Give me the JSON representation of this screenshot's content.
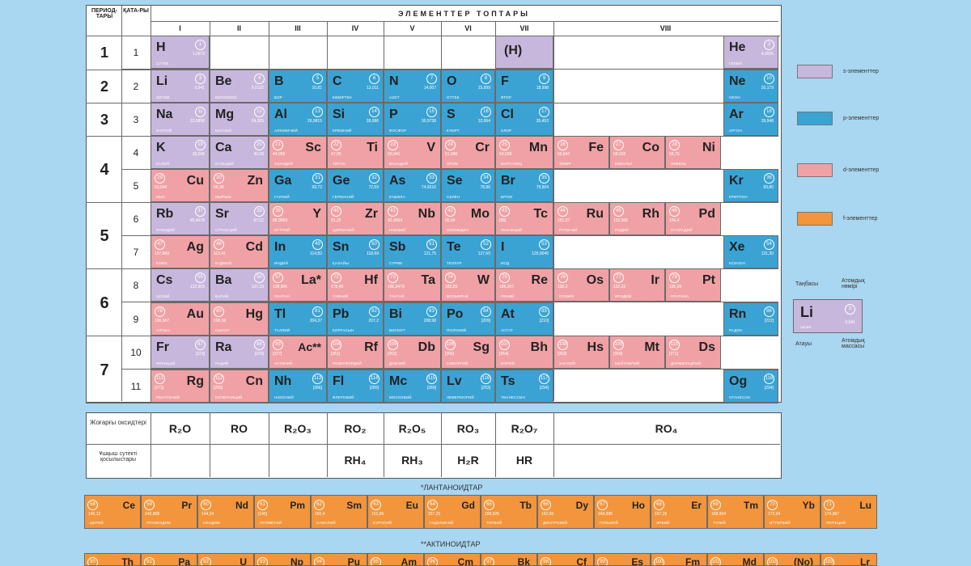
{
  "header": {
    "period_label": "ПЕРИОД-ТАРЫ",
    "row_label": "ҚАТА-РЫ",
    "groups_title": "ЭЛЕМЕНТТЕР ТОПТАРЫ",
    "groups": [
      "I",
      "II",
      "III",
      "IV",
      "V",
      "VI",
      "VII",
      "VIII"
    ]
  },
  "periods": [
    "1",
    "2",
    "3",
    "4",
    "5",
    "6",
    "7"
  ],
  "rows": [
    "1",
    "2",
    "3",
    "4",
    "5",
    "6",
    "7",
    "8",
    "9",
    "10",
    "11"
  ],
  "colors": {
    "s": "#c8b7dc",
    "p": "#3aa3d4",
    "d": "#f0a1a5",
    "f": "#f2953c"
  },
  "elements": [
    {
      "sym": "H",
      "n": "1",
      "type": "s",
      "row": 1,
      "col": 1,
      "mass": "1,0079",
      "name": "СУТЕК"
    },
    {
      "sym": "(H)",
      "n": "",
      "type": "s",
      "row": 1,
      "col": 7,
      "mass": "",
      "name": ""
    },
    {
      "sym": "He",
      "n": "2",
      "type": "s",
      "row": 1,
      "col": 8,
      "mass": "4,0026",
      "name": "ГЕЛИЙ"
    },
    {
      "sym": "Li",
      "n": "3",
      "type": "s",
      "row": 2,
      "col": 1,
      "mass": "6,941",
      "name": "ЛИТИЙ"
    },
    {
      "sym": "Be",
      "n": "4",
      "type": "s",
      "row": 2,
      "col": 2,
      "mass": "9,0122",
      "name": "БЕРИЛЛИЙ"
    },
    {
      "sym": "B",
      "n": "5",
      "type": "p",
      "row": 2,
      "col": 3,
      "mass": "10,81",
      "name": "БОР"
    },
    {
      "sym": "C",
      "n": "6",
      "type": "p",
      "row": 2,
      "col": 4,
      "mass": "12,011",
      "name": "КӨМІРТЕК"
    },
    {
      "sym": "N",
      "n": "7",
      "type": "p",
      "row": 2,
      "col": 5,
      "mass": "14,007",
      "name": "АЗОТ"
    },
    {
      "sym": "O",
      "n": "8",
      "type": "p",
      "row": 2,
      "col": 6,
      "mass": "15,999",
      "name": "ОТТЕК"
    },
    {
      "sym": "F",
      "n": "9",
      "type": "p",
      "row": 2,
      "col": 7,
      "mass": "18,998",
      "name": "ФТОР"
    },
    {
      "sym": "Ne",
      "n": "10",
      "type": "p",
      "row": 2,
      "col": 8,
      "mass": "20,179",
      "name": "НЕОН"
    },
    {
      "sym": "Na",
      "n": "11",
      "type": "s",
      "row": 3,
      "col": 1,
      "mass": "22,9898",
      "name": "НАТРИЙ"
    },
    {
      "sym": "Mg",
      "n": "12",
      "type": "s",
      "row": 3,
      "col": 2,
      "mass": "24,305",
      "name": "МАГНИЙ"
    },
    {
      "sym": "Al",
      "n": "13",
      "type": "p",
      "row": 3,
      "col": 3,
      "mass": "26,9815",
      "name": "АЛЮМИНИЙ"
    },
    {
      "sym": "Si",
      "n": "14",
      "type": "p",
      "row": 3,
      "col": 4,
      "mass": "28,086",
      "name": "КРЕМНИЙ"
    },
    {
      "sym": "P",
      "n": "15",
      "type": "p",
      "row": 3,
      "col": 5,
      "mass": "30,9738",
      "name": "ФОСФОР"
    },
    {
      "sym": "S",
      "n": "16",
      "type": "p",
      "row": 3,
      "col": 6,
      "mass": "32,064",
      "name": "КҮКІРТ"
    },
    {
      "sym": "Cl",
      "n": "17",
      "type": "p",
      "row": 3,
      "col": 7,
      "mass": "35,453",
      "name": "ХЛОР"
    },
    {
      "sym": "Ar",
      "n": "18",
      "type": "p",
      "row": 3,
      "col": 8,
      "mass": "39,948",
      "name": "АРГОН"
    },
    {
      "sym": "K",
      "n": "19",
      "type": "s",
      "row": 4,
      "col": 1,
      "mass": "39,098",
      "name": "КАЛИЙ"
    },
    {
      "sym": "Ca",
      "n": "20",
      "type": "s",
      "row": 4,
      "col": 2,
      "mass": "40,08",
      "name": "КАЛЬЦИЙ"
    },
    {
      "sym": "Sc",
      "n": "21",
      "type": "d",
      "row": 4,
      "col": 3,
      "mass": "44,956",
      "name": "СКАНДИЙ",
      "right": true
    },
    {
      "sym": "Ti",
      "n": "22",
      "type": "d",
      "row": 4,
      "col": 4,
      "mass": "47,90",
      "name": "ТИТАН",
      "right": true
    },
    {
      "sym": "V",
      "n": "23",
      "type": "d",
      "row": 4,
      "col": 5,
      "mass": "50,941",
      "name": "ВАНАДИЙ",
      "right": true
    },
    {
      "sym": "Cr",
      "n": "24",
      "type": "d",
      "row": 4,
      "col": 6,
      "mass": "51,996",
      "name": "ХРОМ",
      "right": true
    },
    {
      "sym": "Mn",
      "n": "25",
      "type": "d",
      "row": 4,
      "col": 7,
      "mass": "54,938",
      "name": "МАРГАНЕЦ",
      "right": true
    },
    {
      "sym": "Fe",
      "n": "26",
      "type": "d",
      "row": 4,
      "col": "8a",
      "mass": "55,847",
      "name": "ТЕМІР",
      "right": true
    },
    {
      "sym": "Co",
      "n": "27",
      "type": "d",
      "row": 4,
      "col": "8b",
      "mass": "58,933",
      "name": "КОБАЛЬТ",
      "right": true
    },
    {
      "sym": "Ni",
      "n": "28",
      "type": "d",
      "row": 4,
      "col": "8c",
      "mass": "58,70",
      "name": "НИКЕЛЬ",
      "right": true
    },
    {
      "sym": "Cu",
      "n": "29",
      "type": "d",
      "row": 5,
      "col": 1,
      "mass": "63,546",
      "name": "МЫС",
      "right": true
    },
    {
      "sym": "Zn",
      "n": "30",
      "type": "d",
      "row": 5,
      "col": 2,
      "mass": "65,38",
      "name": "МЫРЫШ",
      "right": true
    },
    {
      "sym": "Ga",
      "n": "31",
      "type": "p",
      "row": 5,
      "col": 3,
      "mass": "69,72",
      "name": "ГАЛЛИЙ"
    },
    {
      "sym": "Ge",
      "n": "32",
      "type": "p",
      "row": 5,
      "col": 4,
      "mass": "72,59",
      "name": "ГЕРМАНИЙ"
    },
    {
      "sym": "As",
      "n": "33",
      "type": "p",
      "row": 5,
      "col": 5,
      "mass": "74,9216",
      "name": "КҮШӘЛА"
    },
    {
      "sym": "Se",
      "n": "34",
      "type": "p",
      "row": 5,
      "col": 6,
      "mass": "78,96",
      "name": "СЕЛЕН"
    },
    {
      "sym": "Br",
      "n": "35",
      "type": "p",
      "row": 5,
      "col": 7,
      "mass": "79,904",
      "name": "БРОМ"
    },
    {
      "sym": "Kr",
      "n": "36",
      "type": "p",
      "row": 5,
      "col": 8,
      "mass": "83,80",
      "name": "КРИПТОН"
    },
    {
      "sym": "Rb",
      "n": "37",
      "type": "s",
      "row": 6,
      "col": 1,
      "mass": "85,4678",
      "name": "РУБИДИЙ"
    },
    {
      "sym": "Sr",
      "n": "38",
      "type": "s",
      "row": 6,
      "col": 2,
      "mass": "87,62",
      "name": "СТРОНЦИЙ"
    },
    {
      "sym": "Y",
      "n": "39",
      "type": "d",
      "row": 6,
      "col": 3,
      "mass": "88,9059",
      "name": "ИТТРИЙ",
      "right": true
    },
    {
      "sym": "Zr",
      "n": "40",
      "type": "d",
      "row": 6,
      "col": 4,
      "mass": "91,22",
      "name": "ЦИРКОНИЙ",
      "right": true
    },
    {
      "sym": "Nb",
      "n": "41",
      "type": "d",
      "row": 6,
      "col": 5,
      "mass": "92,9064",
      "name": "НИОБИЙ",
      "right": true
    },
    {
      "sym": "Mo",
      "n": "42",
      "type": "d",
      "row": 6,
      "col": 6,
      "mass": "95,94",
      "name": "МОЛИБДЕН",
      "right": true
    },
    {
      "sym": "Tc",
      "n": "43",
      "type": "d",
      "row": 6,
      "col": 7,
      "mass": "[98]",
      "name": "ТЕХНЕЦИЙ",
      "right": true
    },
    {
      "sym": "Ru",
      "n": "44",
      "type": "d",
      "row": 6,
      "col": "8a",
      "mass": "101,07",
      "name": "РУТЕНИЙ",
      "right": true
    },
    {
      "sym": "Rh",
      "n": "45",
      "type": "d",
      "row": 6,
      "col": "8b",
      "mass": "102,906",
      "name": "РОДИЙ",
      "right": true
    },
    {
      "sym": "Pd",
      "n": "46",
      "type": "d",
      "row": 6,
      "col": "8c",
      "mass": "106,4",
      "name": "ПАЛЛАДИЙ",
      "right": true
    },
    {
      "sym": "Ag",
      "n": "47",
      "type": "d",
      "row": 7,
      "col": 1,
      "mass": "107,868",
      "name": "КҮМІС",
      "right": true
    },
    {
      "sym": "Cd",
      "n": "48",
      "type": "d",
      "row": 7,
      "col": 2,
      "mass": "112,41",
      "name": "КАДМИЙ",
      "right": true
    },
    {
      "sym": "In",
      "n": "49",
      "type": "p",
      "row": 7,
      "col": 3,
      "mass": "114,82",
      "name": "ИНДИЙ"
    },
    {
      "sym": "Sn",
      "n": "50",
      "type": "p",
      "row": 7,
      "col": 4,
      "mass": "118,69",
      "name": "ҚАЛАЙЫ"
    },
    {
      "sym": "Sb",
      "n": "51",
      "type": "p",
      "row": 7,
      "col": 5,
      "mass": "121,75",
      "name": "СҮРМЕ"
    },
    {
      "sym": "Te",
      "n": "52",
      "type": "p",
      "row": 7,
      "col": 6,
      "mass": "127,60",
      "name": "ТЕЛЛУР"
    },
    {
      "sym": "I",
      "n": "53",
      "type": "p",
      "row": 7,
      "col": 7,
      "mass": "126,9045",
      "name": "ИОД"
    },
    {
      "sym": "Xe",
      "n": "54",
      "type": "p",
      "row": 7,
      "col": 8,
      "mass": "131,30",
      "name": "КСЕНОН"
    },
    {
      "sym": "Cs",
      "n": "55",
      "type": "s",
      "row": 8,
      "col": 1,
      "mass": "132,905",
      "name": "ЦЕЗИЙ"
    },
    {
      "sym": "Ba",
      "n": "56",
      "type": "s",
      "row": 8,
      "col": 2,
      "mass": "137,33",
      "name": "БАРИЙ"
    },
    {
      "sym": "La*",
      "n": "57",
      "type": "d",
      "row": 8,
      "col": 3,
      "mass": "138,906",
      "name": "ЛАНТАН",
      "right": true
    },
    {
      "sym": "Hf",
      "n": "72",
      "type": "d",
      "row": 8,
      "col": 4,
      "mass": "178,49",
      "name": "ГАФНИЙ",
      "right": true
    },
    {
      "sym": "Ta",
      "n": "73",
      "type": "d",
      "row": 8,
      "col": 5,
      "mass": "180,9479",
      "name": "ТАНТАЛ",
      "right": true
    },
    {
      "sym": "W",
      "n": "74",
      "type": "d",
      "row": 8,
      "col": 6,
      "mass": "183,85",
      "name": "ВОЛЬФРАМ",
      "right": true
    },
    {
      "sym": "Re",
      "n": "75",
      "type": "d",
      "row": 8,
      "col": 7,
      "mass": "186,207",
      "name": "РЕНИЙ",
      "right": true
    },
    {
      "sym": "Os",
      "n": "76",
      "type": "d",
      "row": 8,
      "col": "8a",
      "mass": "190,2",
      "name": "ОСМИЙ",
      "right": true
    },
    {
      "sym": "Ir",
      "n": "77",
      "type": "d",
      "row": 8,
      "col": "8b",
      "mass": "192,22",
      "name": "ИРИДИЙ",
      "right": true
    },
    {
      "sym": "Pt",
      "n": "78",
      "type": "d",
      "row": 8,
      "col": "8c",
      "mass": "195,09",
      "name": "ПЛАТИНА",
      "right": true
    },
    {
      "sym": "Au",
      "n": "79",
      "type": "d",
      "row": 9,
      "col": 1,
      "mass": "196,967",
      "name": "АЛТЫН",
      "right": true
    },
    {
      "sym": "Hg",
      "n": "80",
      "type": "d",
      "row": 9,
      "col": 2,
      "mass": "200,59",
      "name": "СЫНАП",
      "right": true
    },
    {
      "sym": "Tl",
      "n": "81",
      "type": "p",
      "row": 9,
      "col": 3,
      "mass": "204,37",
      "name": "ТАЛЛИЙ"
    },
    {
      "sym": "Pb",
      "n": "82",
      "type": "p",
      "row": 9,
      "col": 4,
      "mass": "207,2",
      "name": "ҚОРҒАСЫН"
    },
    {
      "sym": "Bi",
      "n": "83",
      "type": "p",
      "row": 9,
      "col": 5,
      "mass": "208,98",
      "name": "ВИСМУТ"
    },
    {
      "sym": "Po",
      "n": "84",
      "type": "p",
      "row": 9,
      "col": 6,
      "mass": "[209]",
      "name": "ПОЛОНИЙ"
    },
    {
      "sym": "At",
      "n": "85",
      "type": "p",
      "row": 9,
      "col": 7,
      "mass": "[210]",
      "name": "АСТАТ"
    },
    {
      "sym": "Rn",
      "n": "86",
      "type": "p",
      "row": 9,
      "col": 8,
      "mass": "[222]",
      "name": "РАДОН"
    },
    {
      "sym": "Fr",
      "n": "87",
      "type": "s",
      "row": 10,
      "col": 1,
      "mass": "[223]",
      "name": "ФРАНЦИЙ"
    },
    {
      "sym": "Ra",
      "n": "88",
      "type": "s",
      "row": 10,
      "col": 2,
      "mass": "[226]",
      "name": "РАДИЙ"
    },
    {
      "sym": "Ac**",
      "n": "89",
      "type": "d",
      "row": 10,
      "col": 3,
      "mass": "[227]",
      "name": "АКТИНИЙ",
      "right": true
    },
    {
      "sym": "Rf",
      "n": "104",
      "type": "d",
      "row": 10,
      "col": 4,
      "mass": "[261]",
      "name": "РЕЗЕРФОРДИЙ",
      "right": true
    },
    {
      "sym": "Db",
      "n": "105",
      "type": "d",
      "row": 10,
      "col": 5,
      "mass": "[262]",
      "name": "ДУБНИЙ",
      "right": true
    },
    {
      "sym": "Sg",
      "n": "106",
      "type": "d",
      "row": 10,
      "col": 6,
      "mass": "[266]",
      "name": "СИБОРГИЙ",
      "right": true
    },
    {
      "sym": "Bh",
      "n": "107",
      "type": "d",
      "row": 10,
      "col": 7,
      "mass": "[264]",
      "name": "БОРИЙ",
      "right": true
    },
    {
      "sym": "Hs",
      "n": "108",
      "type": "d",
      "row": 10,
      "col": "8a",
      "mass": "[269]",
      "name": "ХАССИЙ",
      "right": true
    },
    {
      "sym": "Mt",
      "n": "109",
      "type": "d",
      "row": 10,
      "col": "8b",
      "mass": "[268]",
      "name": "МЕЙТНЕРИЙ",
      "right": true
    },
    {
      "sym": "Ds",
      "n": "110",
      "type": "d",
      "row": 10,
      "col": "8c",
      "mass": "[271]",
      "name": "ДАРМШТАДТИЙ",
      "right": true
    },
    {
      "sym": "Rg",
      "n": "111",
      "type": "d",
      "row": 11,
      "col": 1,
      "mass": "[272]",
      "name": "РЕНТГЕНИЙ",
      "right": true
    },
    {
      "sym": "Cn",
      "n": "112",
      "type": "d",
      "row": 11,
      "col": 2,
      "mass": "[285]",
      "name": "КОПЕРНИЦИЙ",
      "right": true
    },
    {
      "sym": "Nh",
      "n": "113",
      "type": "p",
      "row": 11,
      "col": 3,
      "mass": "[286]",
      "name": "НИХОНИЙ"
    },
    {
      "sym": "Fl",
      "n": "114",
      "type": "p",
      "row": 11,
      "col": 4,
      "mass": "[289]",
      "name": "ФЛЕРОВИЙ"
    },
    {
      "sym": "Mc",
      "n": "115",
      "type": "p",
      "row": 11,
      "col": 5,
      "mass": "[289]",
      "name": "МОСКОВИЙ"
    },
    {
      "sym": "Lv",
      "n": "116",
      "type": "p",
      "row": 11,
      "col": 6,
      "mass": "[293]",
      "name": "ЛИВЕРМОРИЙ"
    },
    {
      "sym": "Ts",
      "n": "117",
      "type": "p",
      "row": 11,
      "col": 7,
      "mass": "[294]",
      "name": "ТЕННЕССИН"
    },
    {
      "sym": "Og",
      "n": "118",
      "type": "p",
      "row": 11,
      "col": 8,
      "mass": "[294]",
      "name": "ОГАНЕСОН"
    }
  ],
  "oxides": {
    "label": "Жоғарғы оксидтері",
    "items": [
      "R₂O",
      "RO",
      "R₂O₃",
      "RO₂",
      "R₂O₅",
      "RO₃",
      "R₂O₇",
      "RO₄"
    ]
  },
  "hydrides": {
    "label": "Ұшқыш сутекті қосылыстары",
    "items": [
      "",
      "",
      "",
      "RH₄",
      "RH₃",
      "H₂R",
      "HR",
      ""
    ]
  },
  "legend": [
    {
      "label": "s-элементтер",
      "type": "s"
    },
    {
      "label": "p-элементтер",
      "type": "p"
    },
    {
      "label": "d-элементтер",
      "type": "d"
    },
    {
      "label": "f-элементтер",
      "type": "f"
    }
  ],
  "key_cell": {
    "sym": "Li",
    "n": "3",
    "mass": "6,941",
    "name": "литий",
    "label_symbol": "Таңбасы",
    "label_number": "Атомдық нөмірі",
    "label_name": "Атауы",
    "label_mass": "Атомдық массасы"
  },
  "lanthanides": {
    "title": "*ЛАНТАНОИДТАР",
    "items": [
      {
        "sym": "Ce",
        "n": "58",
        "mass": "140,12",
        "name": "ЦЕРИЙ"
      },
      {
        "sym": "Pr",
        "n": "59",
        "mass": "140,908",
        "name": "ПРАЗЕОДИМ"
      },
      {
        "sym": "Nd",
        "n": "60",
        "mass": "144,24",
        "name": "НЕОДИМ"
      },
      {
        "sym": "Pm",
        "n": "61",
        "mass": "[145]",
        "name": "ПРОМЕТИЙ"
      },
      {
        "sym": "Sm",
        "n": "62",
        "mass": "150,4",
        "name": "САМАРИЙ"
      },
      {
        "sym": "Eu",
        "n": "63",
        "mass": "151,96",
        "name": "ЕУРОПИЙ"
      },
      {
        "sym": "Gd",
        "n": "64",
        "mass": "157,25",
        "name": "ГАДОЛИНИЙ"
      },
      {
        "sym": "Tb",
        "n": "65",
        "mass": "158,925",
        "name": "ТЕРБИЙ"
      },
      {
        "sym": "Dy",
        "n": "66",
        "mass": "162,50",
        "name": "ДИСПРОЗИЙ"
      },
      {
        "sym": "Ho",
        "n": "67",
        "mass": "164,930",
        "name": "ГОЛЬМИЙ"
      },
      {
        "sym": "Er",
        "n": "68",
        "mass": "167,26",
        "name": "ЭРБИЙ"
      },
      {
        "sym": "Tm",
        "n": "69",
        "mass": "168,934",
        "name": "ТУЛИЙ"
      },
      {
        "sym": "Yb",
        "n": "70",
        "mass": "173,04",
        "name": "ИТТЕРБИЙ"
      },
      {
        "sym": "Lu",
        "n": "71",
        "mass": "174,967",
        "name": "ЛЮТЕЦИЙ"
      }
    ]
  },
  "actinides": {
    "title": "**АКТИНОИДТАР",
    "items": [
      {
        "sym": "Th",
        "n": "90"
      },
      {
        "sym": "Pa",
        "n": "91"
      },
      {
        "sym": "U",
        "n": "92"
      },
      {
        "sym": "Np",
        "n": "93"
      },
      {
        "sym": "Pu",
        "n": "94"
      },
      {
        "sym": "Am",
        "n": "95"
      },
      {
        "sym": "Cm",
        "n": "96"
      },
      {
        "sym": "Bk",
        "n": "97"
      },
      {
        "sym": "Cf",
        "n": "98"
      },
      {
        "sym": "Es",
        "n": "99"
      },
      {
        "sym": "Fm",
        "n": "100"
      },
      {
        "sym": "Md",
        "n": "101"
      },
      {
        "sym": "(No)",
        "n": "102"
      },
      {
        "sym": "Lr",
        "n": "103"
      }
    ]
  }
}
